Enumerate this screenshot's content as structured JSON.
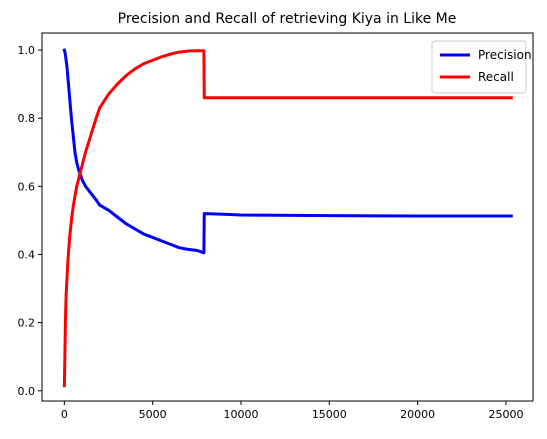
{
  "chart_data": {
    "type": "line",
    "title": "Precision and Recall of retrieving Kiya in Like Me",
    "xlabel": "",
    "ylabel": "",
    "xlim": [
      -1265,
      26530
    ],
    "ylim": [
      -0.03,
      1.05
    ],
    "xticks": [
      0,
      5000,
      10000,
      15000,
      20000,
      25000
    ],
    "xtick_labels": [
      "0",
      "5000",
      "10000",
      "15000",
      "20000",
      "25000"
    ],
    "yticks": [
      0.0,
      0.2,
      0.4,
      0.6,
      0.8,
      1.0
    ],
    "ytick_labels": [
      "0.0",
      "0.2",
      "0.4",
      "0.6",
      "0.8",
      "1.0"
    ],
    "grid": false,
    "legend_position": "top-right",
    "series": [
      {
        "name": "Precision",
        "color": "#0000ff",
        "x": [
          0,
          50,
          100,
          150,
          200,
          300,
          400,
          500,
          600,
          700,
          800,
          1000,
          1200,
          1500,
          1800,
          2000,
          2500,
          3000,
          3500,
          4000,
          4500,
          5000,
          5500,
          6000,
          6500,
          7000,
          7500,
          7900,
          7920,
          8000,
          9000,
          10000,
          12000,
          15000,
          20000,
          25300
        ],
        "y": [
          1.0,
          0.99,
          0.97,
          0.95,
          0.92,
          0.86,
          0.8,
          0.75,
          0.7,
          0.67,
          0.65,
          0.62,
          0.6,
          0.58,
          0.56,
          0.545,
          0.53,
          0.51,
          0.49,
          0.475,
          0.46,
          0.45,
          0.44,
          0.43,
          0.42,
          0.415,
          0.412,
          0.405,
          0.52,
          0.52,
          0.518,
          0.516,
          0.515,
          0.514,
          0.513,
          0.513
        ]
      },
      {
        "name": "Recall",
        "color": "#ff0000",
        "x": [
          0,
          30,
          60,
          100,
          150,
          200,
          300,
          400,
          500,
          600,
          700,
          800,
          1000,
          1200,
          1500,
          1800,
          2000,
          2500,
          3000,
          3500,
          4000,
          4500,
          5000,
          5500,
          6000,
          6500,
          7000,
          7500,
          7900,
          7920,
          8000,
          10000,
          15000,
          20000,
          25300
        ],
        "y": [
          0.015,
          0.1,
          0.2,
          0.28,
          0.33,
          0.38,
          0.45,
          0.5,
          0.54,
          0.57,
          0.6,
          0.62,
          0.66,
          0.7,
          0.75,
          0.8,
          0.83,
          0.87,
          0.9,
          0.925,
          0.945,
          0.96,
          0.97,
          0.98,
          0.988,
          0.994,
          0.997,
          0.998,
          0.998,
          0.86,
          0.86,
          0.86,
          0.86,
          0.86,
          0.86
        ]
      }
    ]
  }
}
